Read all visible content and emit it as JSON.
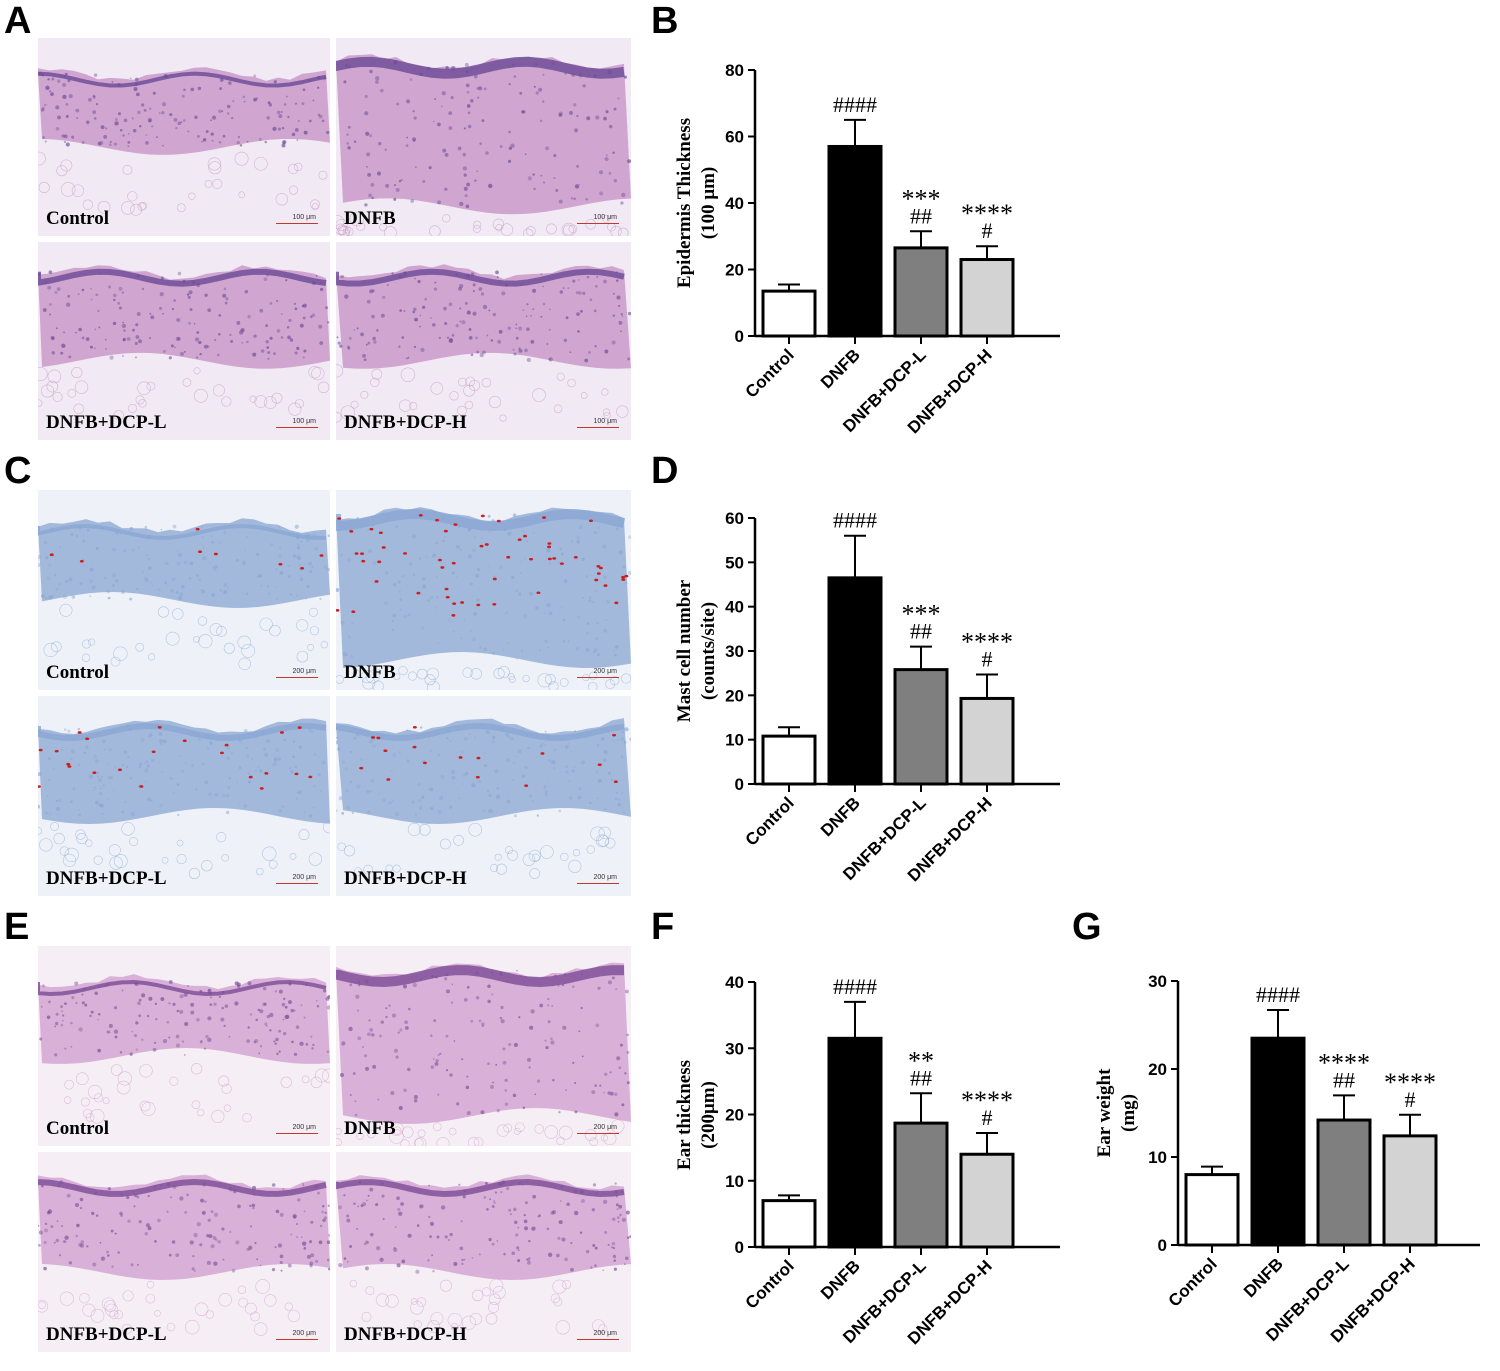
{
  "panel_letters": {
    "A": "A",
    "B": "B",
    "C": "C",
    "D": "D",
    "E": "E",
    "F": "F",
    "G": "G"
  },
  "micrographs": {
    "A": {
      "labels": [
        "Control",
        "DNFB",
        "DNFB+DCP-L",
        "DNFB+DCP-H"
      ],
      "scale": "100 μm",
      "stain": "H&E",
      "colors": {
        "tissue": "#c48fc4",
        "background": "#f1e9f3",
        "nuclei": "#6a4a96"
      }
    },
    "C": {
      "labels": [
        "Control",
        "DNFB",
        "DNFB+DCP-L",
        "DNFB+DCP-H"
      ],
      "scale": "200 μm",
      "stain": "toluidine blue",
      "colors": {
        "tissue": "#8aa6d3",
        "background": "#eef2f8",
        "mast_cells": "#cc1f1f"
      }
    },
    "E": {
      "labels": [
        "Control",
        "DNFB",
        "DNFB+DCP-L",
        "DNFB+DCP-H"
      ],
      "scale": "200 μm",
      "stain": "H&E",
      "colors": {
        "tissue": "#cf9bcc",
        "background": "#f5eef5",
        "nuclei": "#7a4c96"
      }
    }
  },
  "chart_data": [
    {
      "id": "B",
      "type": "bar",
      "ylabel": "Epidermis Thickness\n(100 μm)",
      "categories": [
        "Control",
        "DNFB",
        "DNFB+DCP-L",
        "DNFB+DCP-H"
      ],
      "values": [
        13.5,
        57,
        26.5,
        23
      ],
      "errors": [
        2,
        8,
        5,
        4
      ],
      "ylim": [
        0,
        80
      ],
      "yticks": [
        0,
        20,
        40,
        60,
        80
      ],
      "annotations": [
        [
          "",
          ""
        ],
        [
          "",
          "####"
        ],
        [
          "***",
          "##"
        ],
        [
          "****",
          "#"
        ]
      ],
      "colors": [
        "#ffffff",
        "#000000",
        "#7f7f7f",
        "#d3d3d3"
      ]
    },
    {
      "id": "D",
      "type": "bar",
      "ylabel": "Mast cell number\n(counts/site)",
      "categories": [
        "Control",
        "DNFB",
        "DNFB+DCP-L",
        "DNFB+DCP-H"
      ],
      "values": [
        10.8,
        46.5,
        25.8,
        19.3
      ],
      "errors": [
        2,
        9.5,
        5.2,
        5.4
      ],
      "ylim": [
        0,
        60
      ],
      "yticks": [
        0,
        10,
        20,
        30,
        40,
        50,
        60
      ],
      "annotations": [
        [
          "",
          ""
        ],
        [
          "",
          "####"
        ],
        [
          "***",
          "##"
        ],
        [
          "****",
          "#"
        ]
      ],
      "colors": [
        "#ffffff",
        "#000000",
        "#7f7f7f",
        "#d3d3d3"
      ]
    },
    {
      "id": "F",
      "type": "bar",
      "ylabel": "Ear thickness\n(200μm)",
      "categories": [
        "Control",
        "DNFB",
        "DNFB+DCP-L",
        "DNFB+DCP-H"
      ],
      "values": [
        7,
        31.5,
        18.7,
        14
      ],
      "errors": [
        0.8,
        5.5,
        4.5,
        3.2
      ],
      "ylim": [
        0,
        40
      ],
      "yticks": [
        0,
        10,
        20,
        30,
        40
      ],
      "annotations": [
        [
          "",
          ""
        ],
        [
          "",
          "####"
        ],
        [
          "**",
          "##"
        ],
        [
          "****",
          "#"
        ]
      ],
      "colors": [
        "#ffffff",
        "#000000",
        "#7f7f7f",
        "#d3d3d3"
      ]
    },
    {
      "id": "G",
      "type": "bar",
      "ylabel": "Ear weight\n(mg)",
      "categories": [
        "Control",
        "DNFB",
        "DNFB+DCP-L",
        "DNFB+DCP-H"
      ],
      "values": [
        8,
        23.5,
        14.2,
        12.4
      ],
      "errors": [
        0.9,
        3.2,
        2.8,
        2.4
      ],
      "ylim": [
        0,
        30
      ],
      "yticks": [
        0,
        10,
        20,
        30
      ],
      "annotations": [
        [
          "",
          ""
        ],
        [
          "",
          "####"
        ],
        [
          "****",
          "##"
        ],
        [
          "****",
          "#"
        ]
      ],
      "colors": [
        "#ffffff",
        "#000000",
        "#7f7f7f",
        "#d3d3d3"
      ]
    }
  ]
}
